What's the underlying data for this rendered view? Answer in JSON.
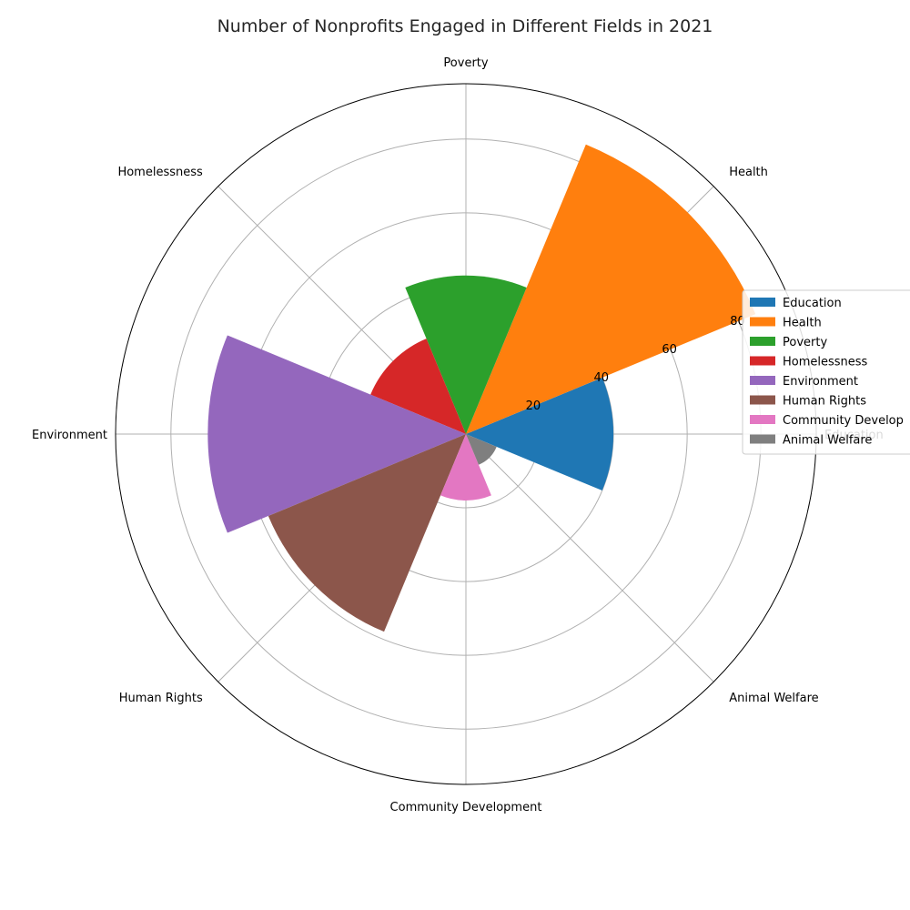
{
  "chart_data": {
    "type": "bar",
    "projection": "polar",
    "title": "Number of Nonprofits Engaged in Different Fields in 2021",
    "categories": [
      "Education",
      "Health",
      "Poverty",
      "Homelessness",
      "Environment",
      "Human Rights",
      "Community Development",
      "Animal Welfare"
    ],
    "values": [
      40,
      85,
      43,
      28,
      70,
      58,
      18,
      9
    ],
    "colors": [
      "#1f77b4",
      "#ff7f0e",
      "#2ca02c",
      "#d62728",
      "#9467bd",
      "#8c564b",
      "#e377c2",
      "#7f7f7f"
    ],
    "rticks": [
      20,
      40,
      60,
      80
    ],
    "rlim": [
      0,
      95
    ],
    "grid": true,
    "legend": "right",
    "legend_labels": [
      "Education",
      "Health",
      "Poverty",
      "Homelessness",
      "Environment",
      "Human Rights",
      "Community Develop",
      "Animal Welfare"
    ]
  }
}
